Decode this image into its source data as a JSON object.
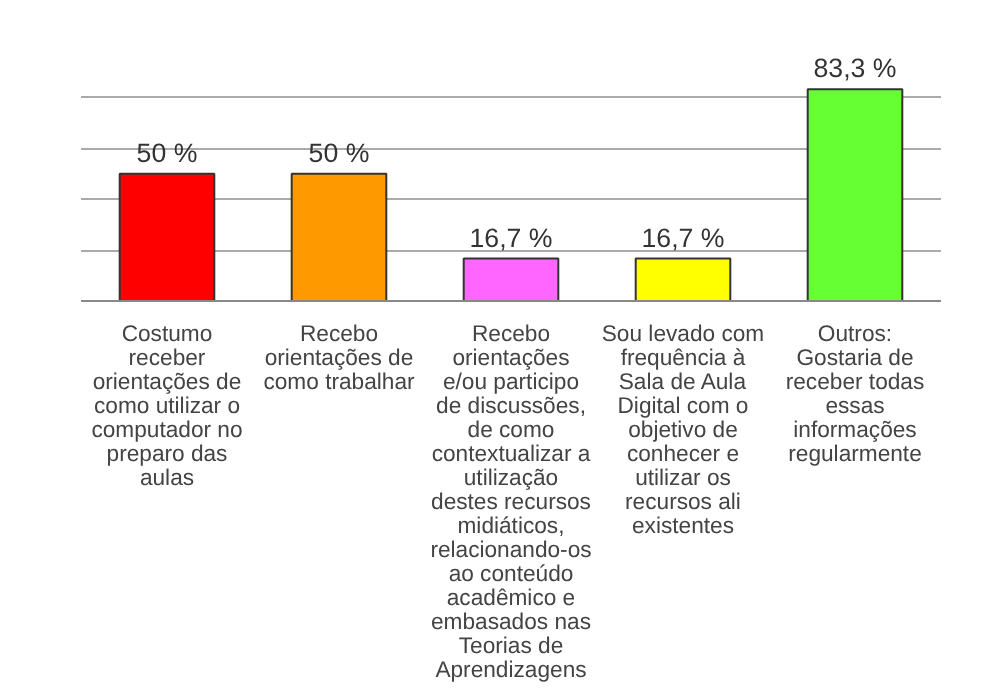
{
  "chart_data": {
    "type": "bar",
    "categories": [
      "Costumo\nreceber\norientações de\ncomo utilizar o\ncomputador no\npreparo das\naulas",
      "Recebo\norientações de\ncomo trabalhar",
      "Recebo\norientações\ne/ou participo\nde discussões,\nde como\ncontextualizar a\nutilização\ndestes recursos\nmidiáticos,\nrelacionando-os\nao conteúdo\nacadêmico e\nembasados nas\nTeorias de\nAprendizagens",
      "Sou levado com\nfrequência à\nSala de Aula\nDigital com o\nobjetivo de\nconhecer e\nutilizar os\nrecursos ali\nexistentes",
      "Outros:\nGostaria de\nreceber todas\nessas\ninformações\nregularmente"
    ],
    "values": [
      50,
      50,
      16.7,
      16.7,
      83.3
    ],
    "value_labels": [
      "50 %",
      "50 %",
      "16,7 %",
      "16,7 %",
      "83,3 %"
    ],
    "colors": [
      "#ff0000",
      "#ff9900",
      "#ff66ff",
      "#ffff00",
      "#66ff33"
    ],
    "grid": "y",
    "tick_labels": "x"
  }
}
